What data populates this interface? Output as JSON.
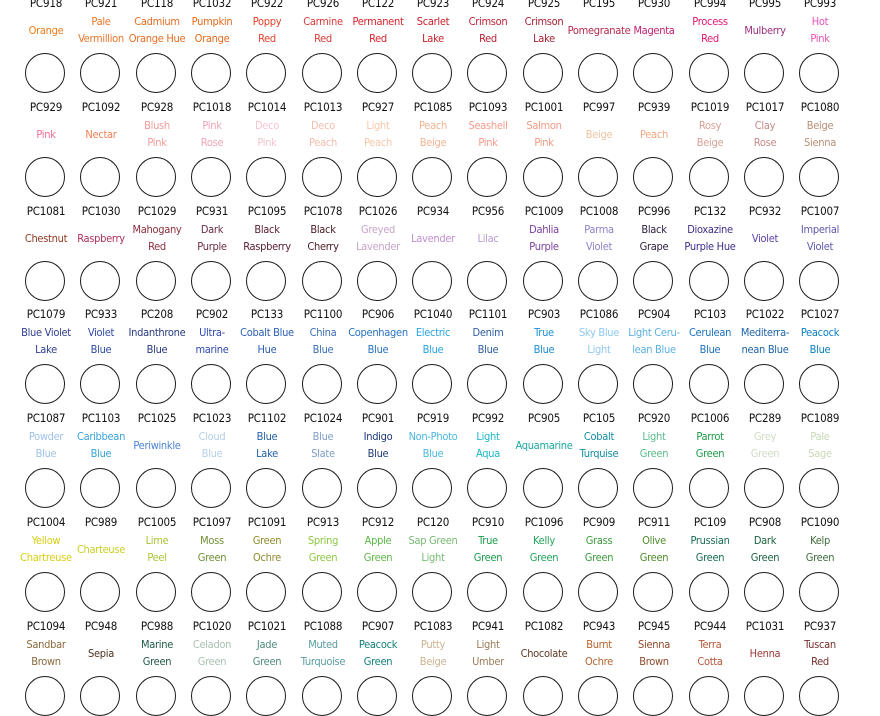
{
  "rows": [
    {
      "codes": [
        "PC918",
        "PC921",
        "PC118",
        "PC1032",
        "PC922",
        "PC926",
        "PC122",
        "PC923",
        "PC924",
        "PC925",
        "PC195",
        "PC930",
        "PC994",
        "PC995",
        "PC993"
      ],
      "names": [
        [
          "Orange"
        ],
        [
          "Pale",
          "Vermillion"
        ],
        [
          "Cadmium",
          "Orange Hue"
        ],
        [
          "Pumpkin",
          "Orange"
        ],
        [
          "Poppy",
          "Red"
        ],
        [
          "Carmine",
          "Red"
        ],
        [
          "Permanent",
          "Red"
        ],
        [
          "Scarlet",
          "Lake"
        ],
        [
          "Crimson",
          "Red"
        ],
        [
          "Crimson",
          "Lake"
        ],
        [
          "Pomegranate"
        ],
        [
          "Magenta"
        ],
        [
          "Process",
          "Red"
        ],
        [
          "Mulberry"
        ],
        [
          "Hot",
          "Pink"
        ]
      ],
      "colors": [
        "#f07c1a",
        "#e8762a",
        "#e66d22",
        "#e86a1c",
        "#e4402c",
        "#d93a38",
        "#d9242c",
        "#c9202c",
        "#bd1f33",
        "#a51f32",
        "#b22a4e",
        "#c41d6e",
        "#e2156e",
        "#9c2f7c",
        "#e552b4"
      ]
    },
    {
      "codes": [
        "PC929",
        "PC1092",
        "PC928",
        "PC1018",
        "PC1014",
        "PC1013",
        "PC927",
        "PC1085",
        "PC1093",
        "PC1001",
        "PC997",
        "PC939",
        "PC1019",
        "PC1017",
        "PC1080"
      ],
      "names": [
        [
          "Pink"
        ],
        [
          "Nectar"
        ],
        [
          "Blush",
          "Pink"
        ],
        [
          "Pink",
          "Rose"
        ],
        [
          "Deco",
          "Pink"
        ],
        [
          "Deco",
          "Peach"
        ],
        [
          "Light",
          "Peach"
        ],
        [
          "Peach",
          "Beige"
        ],
        [
          "Seashell",
          "Pink"
        ],
        [
          "Salmon",
          "Pink"
        ],
        [
          "Beige"
        ],
        [
          "Peach"
        ],
        [
          "Rosy",
          "Beige"
        ],
        [
          "Clay",
          "Rose"
        ],
        [
          "Beige",
          "Sienna"
        ]
      ],
      "colors": [
        "#ef6e93",
        "#ef7f58",
        "#f29a9a",
        "#f0a4b4",
        "#f6c5d0",
        "#f4bdae",
        "#f7c8a9",
        "#f2b391",
        "#f69a8c",
        "#f29984",
        "#f0c39e",
        "#f0a882",
        "#d8a096",
        "#c38a88",
        "#b98e76"
      ]
    },
    {
      "codes": [
        "PC1081",
        "PC1030",
        "PC1029",
        "PC931",
        "PC1095",
        "PC1078",
        "PC1026",
        "PC934",
        "PC956",
        "PC1009",
        "PC1008",
        "PC996",
        "PC132",
        "PC932",
        "PC1007"
      ],
      "names": [
        [
          "Chestnut"
        ],
        [
          "Raspberry"
        ],
        [
          "Mahogany",
          "Red"
        ],
        [
          "Dark",
          "Purple"
        ],
        [
          "Black",
          "Raspberry"
        ],
        [
          "Black",
          "Cherry"
        ],
        [
          "Greyed",
          "Lavender"
        ],
        [
          "Lavender"
        ],
        [
          "Lilac"
        ],
        [
          "Dahlia",
          "Purple"
        ],
        [
          "Parma",
          "Violet"
        ],
        [
          "Black",
          "Grape"
        ],
        [
          "Dioxazine",
          "Purple Hue"
        ],
        [
          "Violet"
        ],
        [
          "Imperial",
          "Violet"
        ]
      ],
      "colors": [
        "#8e3b26",
        "#b0305a",
        "#8a2f3c",
        "#6a2d48",
        "#5b2234",
        "#4a1c24",
        "#c7a5c8",
        "#c28ed0",
        "#b59bd1",
        "#7a3fa0",
        "#8e84c8",
        "#2e2040",
        "#3e2e88",
        "#5a3fa7",
        "#5d5aa9"
      ]
    },
    {
      "codes": [
        "PC1079",
        "PC933",
        "PC208",
        "PC902",
        "PC133",
        "PC1100",
        "PC906",
        "PC1040",
        "PC1101",
        "PC903",
        "PC1086",
        "PC904",
        "PC103",
        "PC1022",
        "PC1027"
      ],
      "names": [
        [
          "Blue Violet",
          "Lake"
        ],
        [
          "Violet",
          "Blue"
        ],
        [
          "Indanthrone",
          "Blue"
        ],
        [
          "Ultra-",
          "marine"
        ],
        [
          "Cobalt Blue",
          "Hue"
        ],
        [
          "China",
          "Blue"
        ],
        [
          "Copenhagen",
          "Blue"
        ],
        [
          "Electric",
          "Blue"
        ],
        [
          "Denim",
          "Blue"
        ],
        [
          "True",
          "Blue"
        ],
        [
          "Sky Blue",
          "Light"
        ],
        [
          "Light Ceru-",
          "lean Blue"
        ],
        [
          "Cerulean",
          "Blue"
        ],
        [
          "Mediterra-",
          "nean Blue"
        ],
        [
          "Peacock",
          "Blue"
        ]
      ],
      "colors": [
        "#2f3f8f",
        "#2f4aa5",
        "#273a7e",
        "#2f4bb0",
        "#2c5fb2",
        "#3c6fb7",
        "#2a72c0",
        "#29a2e0",
        "#2e5da4",
        "#1d8ed8",
        "#8fc8ef",
        "#5bb0e0",
        "#1c72c4",
        "#1e64a8",
        "#0a7fbf"
      ]
    },
    {
      "codes": [
        "PC1087",
        "PC1103",
        "PC1025",
        "PC1023",
        "PC1102",
        "PC1024",
        "PC901",
        "PC919",
        "PC992",
        "PC905",
        "PC105",
        "PC920",
        "PC1006",
        "PC289",
        "PC1089"
      ],
      "names": [
        [
          "Powder",
          "Blue"
        ],
        [
          "Caribbean",
          "Blue"
        ],
        [
          "Periwinkle"
        ],
        [
          "Cloud",
          "Blue"
        ],
        [
          "Blue",
          "Lake"
        ],
        [
          "Blue",
          "Slate"
        ],
        [
          "Indigo",
          "Blue"
        ],
        [
          "Non-Photo",
          "Blue"
        ],
        [
          "Light",
          "Aqua"
        ],
        [
          "Aquamarine"
        ],
        [
          "Cobalt",
          "Turquise"
        ],
        [
          "Light",
          "Green"
        ],
        [
          "Parrot",
          "Green"
        ],
        [
          "Grey",
          "Green"
        ],
        [
          "Pale",
          "Sage"
        ]
      ],
      "colors": [
        "#9fc2e6",
        "#38a3d8",
        "#4c84d0",
        "#b5cfe8",
        "#2461a6",
        "#7e9fc6",
        "#1f3978",
        "#4bb8e0",
        "#1bb8c8",
        "#19a7a1",
        "#138da0",
        "#58bc8c",
        "#1e9b48",
        "#cfdcc8",
        "#c8d8b8"
      ]
    },
    {
      "codes": [
        "PC1004",
        "PC989",
        "PC1005",
        "PC1097",
        "PC1091",
        "PC913",
        "PC912",
        "PC120",
        "PC910",
        "PC1096",
        "PC909",
        "PC911",
        "PC109",
        "PC908",
        "PC1090"
      ],
      "names": [
        [
          "Yellow",
          "Chartreuse"
        ],
        [
          "Charteuse"
        ],
        [
          "Lime",
          "Peel"
        ],
        [
          "Moss",
          "Green"
        ],
        [
          "Green",
          "Ochre"
        ],
        [
          "Spring",
          "Green"
        ],
        [
          "Apple",
          "Green"
        ],
        [
          "Sap Green",
          "Light"
        ],
        [
          "True",
          "Green"
        ],
        [
          "Kelly",
          "Green"
        ],
        [
          "Grass",
          "Green"
        ],
        [
          "Olive",
          "Green"
        ],
        [
          "Prussian",
          "Green"
        ],
        [
          "Dark",
          "Green"
        ],
        [
          "Kelp",
          "Green"
        ]
      ],
      "colors": [
        "#d8cf12",
        "#c7cf22",
        "#a9c537",
        "#6f8f36",
        "#8c8c2c",
        "#8ec63f",
        "#5ab744",
        "#79ba73",
        "#1a9c4a",
        "#23a25a",
        "#3b9a3e",
        "#4f8c2c",
        "#1a6d54",
        "#1d6340",
        "#3f6b3e"
      ]
    },
    {
      "codes": [
        "PC1094",
        "PC948",
        "PC988",
        "PC1020",
        "PC1021",
        "PC1088",
        "PC907",
        "PC1083",
        "PC941",
        "PC1082",
        "PC943",
        "PC945",
        "PC944",
        "PC1031",
        "PC937"
      ],
      "names": [
        [
          "Sandbar",
          "Brown"
        ],
        [
          "Sepia"
        ],
        [
          "Marine",
          "Green"
        ],
        [
          "Celadon",
          "Green"
        ],
        [
          "Jade",
          "Green"
        ],
        [
          "Muted",
          "Turquoise"
        ],
        [
          "Peacock",
          "Green"
        ],
        [
          "Putty",
          "Beige"
        ],
        [
          "Light",
          "Umber"
        ],
        [
          "Chocolate"
        ],
        [
          "Burnt",
          "Ochre"
        ],
        [
          "Sienna",
          "Brown"
        ],
        [
          "Terra",
          "Cotta"
        ],
        [
          "Henna"
        ],
        [
          "Tuscan",
          "Red"
        ]
      ],
      "colors": [
        "#8b6b3e",
        "#4b3322",
        "#1f5a47",
        "#a9c2b0",
        "#4f8a7e",
        "#5a9da0",
        "#0f7f78",
        "#c9b28e",
        "#9b7d5a",
        "#5e3a26",
        "#b5642c",
        "#8e4a2b",
        "#b8563a",
        "#9e3a34",
        "#74302c"
      ]
    }
  ]
}
